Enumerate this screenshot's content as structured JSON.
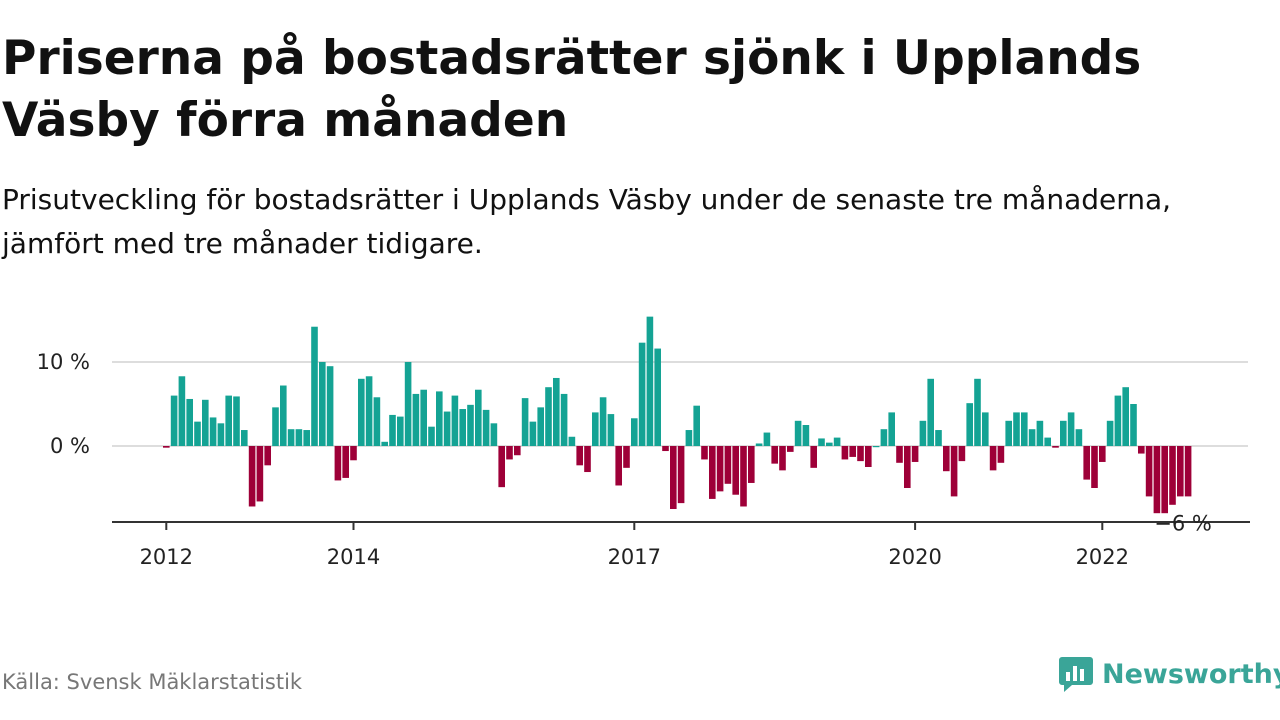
{
  "header": {
    "title": "Priserna på bostadsrätter sjönk i Upplands Väsby förra månaden",
    "subtitle": "Prisutveckling för bostadsrätter i Upplands Väsby under de senaste tre månaderna, jämfört med tre månader tidigare."
  },
  "footer": {
    "source": "Källa: Svensk Mäklarstatistik",
    "brand": "Newsworthy",
    "brand_color": "#3aa598"
  },
  "chart_data": {
    "type": "bar",
    "title": "",
    "xlabel": "",
    "ylabel": "",
    "x_start": "2012-01",
    "x_interval": "month",
    "ylim": [
      -9,
      16
    ],
    "y_ticks": [
      {
        "value": 0,
        "label": "0 %"
      },
      {
        "value": 10,
        "label": "10 %"
      }
    ],
    "x_ticks": [
      {
        "month": "2012-01",
        "label": "2012"
      },
      {
        "month": "2014-01",
        "label": "2014"
      },
      {
        "month": "2017-01",
        "label": "2017"
      },
      {
        "month": "2020-01",
        "label": "2020"
      },
      {
        "month": "2022-01",
        "label": "2022"
      }
    ],
    "grid": true,
    "positive_color": "#14a394",
    "negative_color": "#9e0038",
    "last_value_label": "−6 %",
    "values": [
      -0.2,
      6.0,
      8.3,
      5.6,
      2.9,
      5.5,
      3.4,
      2.7,
      6.0,
      5.9,
      1.9,
      -7.2,
      -6.6,
      -2.3,
      4.6,
      7.2,
      2.0,
      2.0,
      1.9,
      14.2,
      10.0,
      9.5,
      -4.1,
      -3.8,
      -1.7,
      8.0,
      8.3,
      5.8,
      0.5,
      3.7,
      3.5,
      10.0,
      6.2,
      6.7,
      2.3,
      6.5,
      4.1,
      6.0,
      4.4,
      4.9,
      6.7,
      4.3,
      2.7,
      -4.9,
      -1.6,
      -1.1,
      5.7,
      2.9,
      4.6,
      7.0,
      8.1,
      6.2,
      1.1,
      -2.3,
      -3.1,
      4.0,
      5.8,
      3.8,
      -4.7,
      -2.6,
      3.3,
      12.3,
      15.4,
      11.6,
      -0.6,
      -7.5,
      -6.8,
      1.9,
      4.8,
      -1.6,
      -6.3,
      -5.4,
      -4.5,
      -5.8,
      -7.2,
      -4.4,
      0.3,
      1.6,
      -2.1,
      -2.9,
      -0.7,
      3.0,
      2.5,
      -2.6,
      0.9,
      0.4,
      1.0,
      -1.6,
      -1.3,
      -1.8,
      -2.5,
      0.0,
      2.0,
      4.0,
      -2.0,
      -5.0,
      -1.9,
      3.0,
      8.0,
      1.9,
      -3.0,
      -6.0,
      -1.8,
      5.1,
      8.0,
      4.0,
      -2.9,
      -2.0,
      3.0,
      4.0,
      4.0,
      2.0,
      3.0,
      1.0,
      -0.2,
      3.0,
      4.0,
      2.0,
      -4.0,
      -5.0,
      -1.9,
      3.0,
      6.0,
      7.0,
      5.0,
      -0.9,
      -6.0,
      -8.0,
      -8.0,
      -7.0,
      -6.0,
      -6.0
    ]
  }
}
